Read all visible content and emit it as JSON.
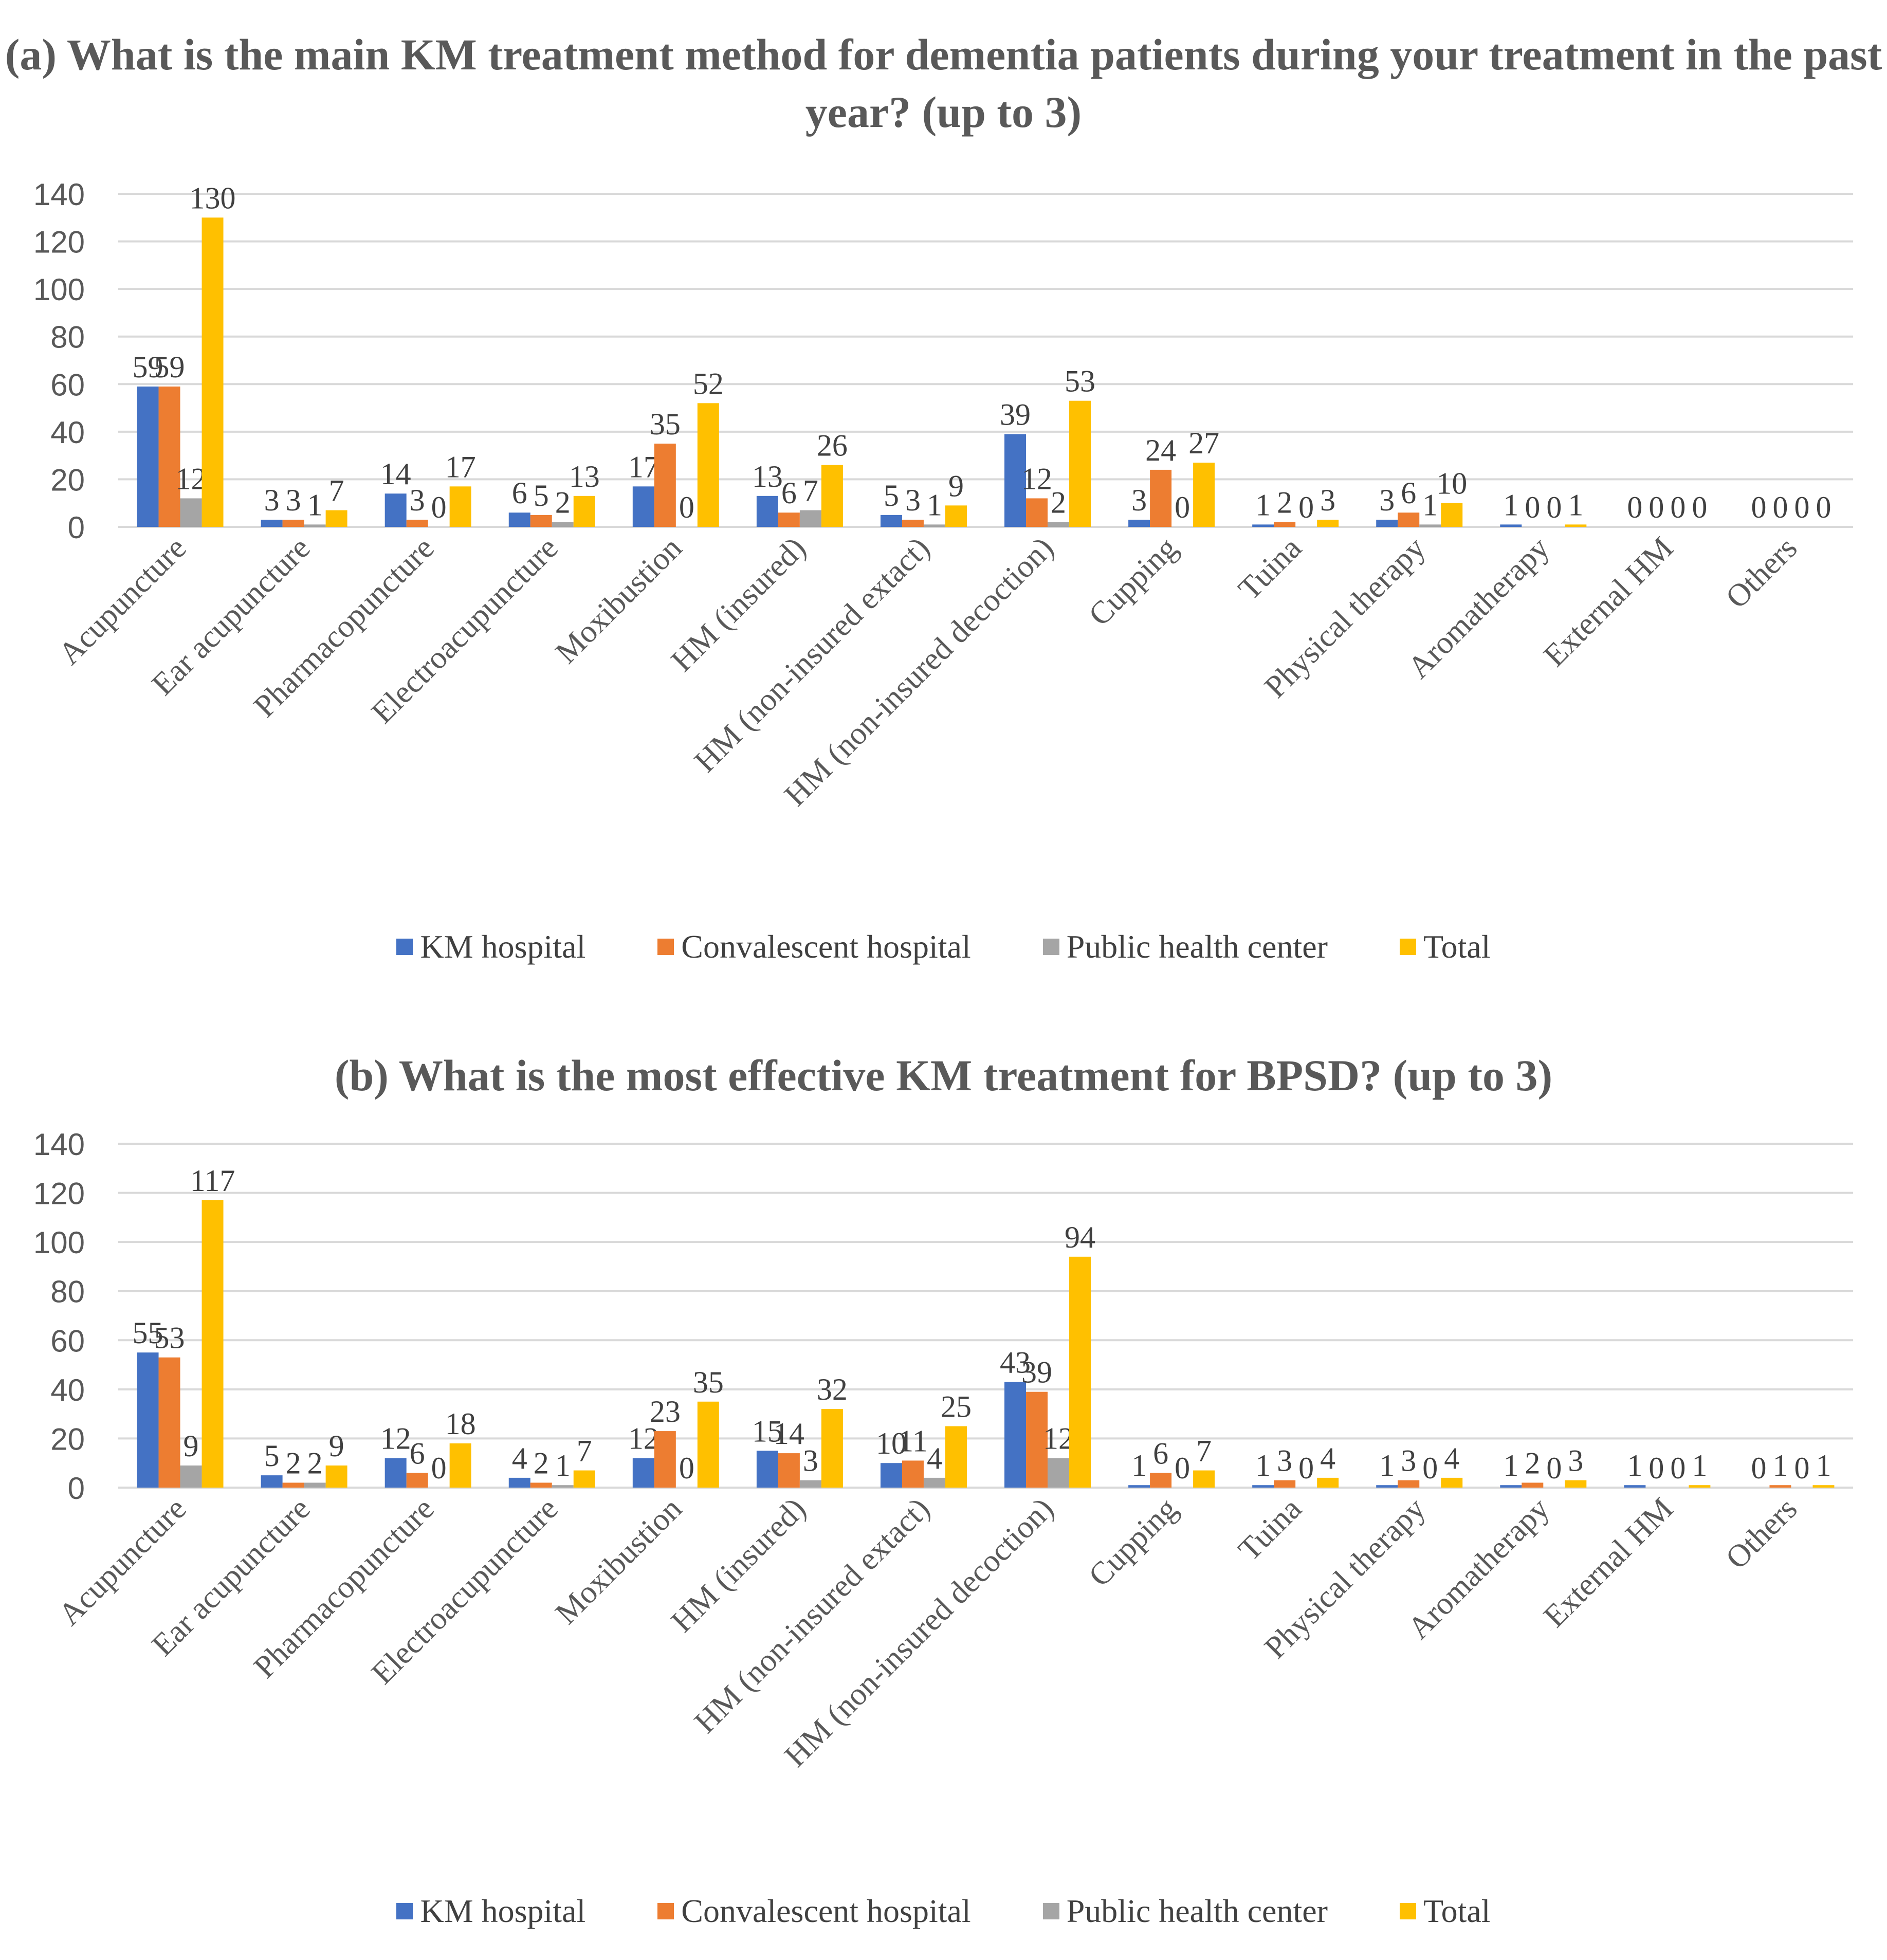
{
  "chart_data": [
    {
      "type": "bar",
      "title": "(a) What is the main KM treatment method for dementia patients during your treatment in the past year? (up to 3)",
      "categories": [
        "Acupuncture",
        "Ear acupuncture",
        "Pharmacopuncture",
        "Electroacupuncture",
        "Moxibustion",
        "HM (insured)",
        "HM (non-insured extact)",
        "HM (non-insured decoction)",
        "Cupping",
        "Tuina",
        "Physical therapy",
        "Aromatherapy",
        "External HM",
        "Others"
      ],
      "series": [
        {
          "name": "KM hospital",
          "color": "#4472C4",
          "values": [
            59,
            3,
            14,
            6,
            17,
            13,
            5,
            39,
            3,
            1,
            3,
            1,
            0,
            0
          ]
        },
        {
          "name": "Convalescent hospital",
          "color": "#ED7D31",
          "values": [
            59,
            3,
            3,
            5,
            35,
            6,
            3,
            12,
            24,
            2,
            6,
            0,
            0,
            0
          ]
        },
        {
          "name": "Public health center",
          "color": "#A5A5A5",
          "values": [
            12,
            1,
            0,
            2,
            0,
            7,
            1,
            2,
            0,
            0,
            1,
            0,
            0,
            0
          ]
        },
        {
          "name": "Total",
          "color": "#FFC000",
          "values": [
            130,
            7,
            17,
            13,
            52,
            26,
            9,
            53,
            27,
            3,
            10,
            1,
            0,
            0
          ]
        }
      ],
      "yticks": [
        "0",
        "20",
        "40",
        "60",
        "80",
        "100",
        "120",
        "140"
      ],
      "ylim": [
        0,
        140
      ],
      "grid": true,
      "legend_position": "bottom"
    },
    {
      "type": "bar",
      "title": "(b) What is the most effective KM treatment for BPSD? (up to 3)",
      "categories": [
        "Acupuncture",
        "Ear acupuncture",
        "Pharmacopuncture",
        "Electroacupuncture",
        "Moxibustion",
        "HM (insured)",
        "HM (non-insured extact)",
        "HM (non-insured decoction)",
        "Cupping",
        "Tuina",
        "Physical therapy",
        "Aromatherapy",
        "External HM",
        "Others"
      ],
      "series": [
        {
          "name": "KM hospital",
          "color": "#4472C4",
          "values": [
            55,
            5,
            12,
            4,
            12,
            15,
            10,
            43,
            1,
            1,
            1,
            1,
            1,
            0
          ]
        },
        {
          "name": "Convalescent hospital",
          "color": "#ED7D31",
          "values": [
            53,
            2,
            6,
            2,
            23,
            14,
            11,
            39,
            6,
            3,
            3,
            2,
            0,
            1
          ]
        },
        {
          "name": "Public health center",
          "color": "#A5A5A5",
          "values": [
            9,
            2,
            0,
            1,
            0,
            3,
            4,
            12,
            0,
            0,
            0,
            0,
            0,
            0
          ]
        },
        {
          "name": "Total",
          "color": "#FFC000",
          "values": [
            117,
            9,
            18,
            7,
            35,
            32,
            25,
            94,
            7,
            4,
            4,
            3,
            1,
            1
          ]
        }
      ],
      "yticks": [
        "0",
        "20",
        "40",
        "60",
        "80",
        "100",
        "120",
        "140"
      ],
      "ylim": [
        0,
        140
      ],
      "grid": true,
      "legend_position": "bottom"
    }
  ]
}
